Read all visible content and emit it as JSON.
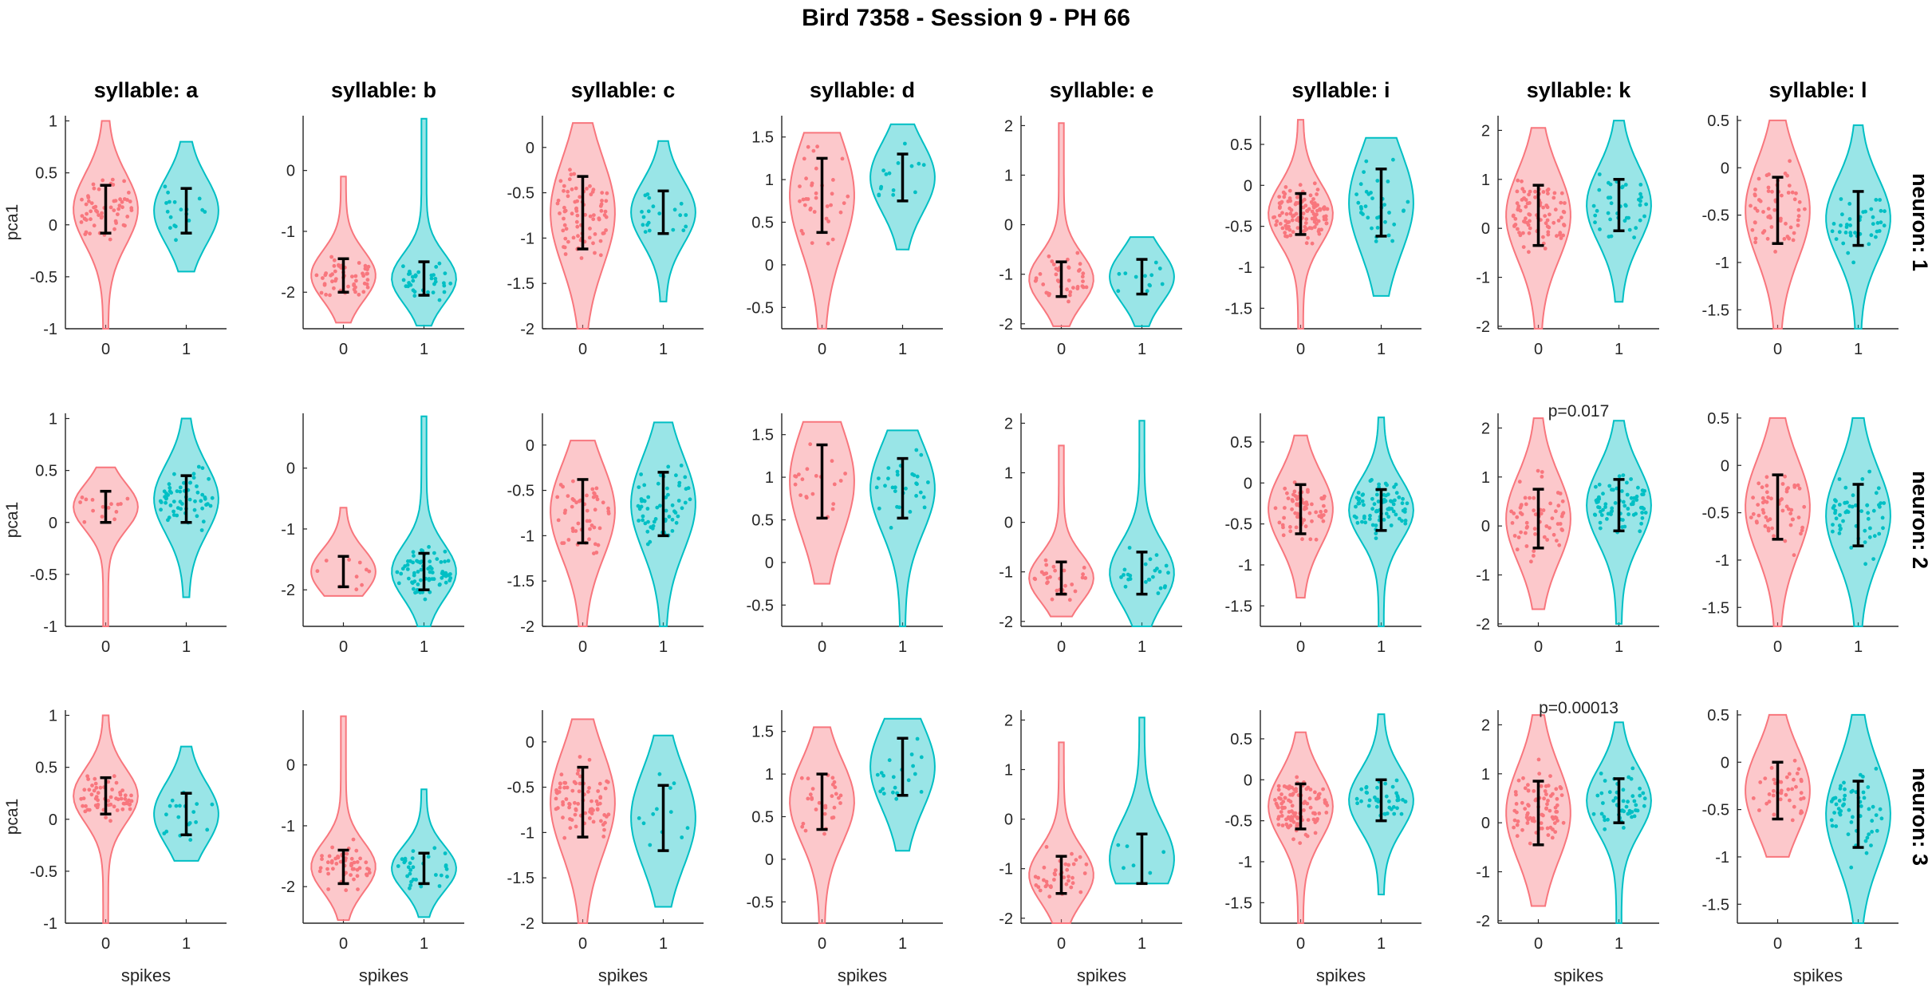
{
  "figure_title": "Bird 7358 - Session 9 - PH 66",
  "colors": {
    "spikes0": "#f8767d",
    "spikes1": "#00bfc4",
    "whisker": "#000000",
    "axis": "#262626"
  },
  "chart_data": {
    "type": "violin",
    "title": "Bird 7358 - Session 9 - PH 66",
    "xlabel": "spikes",
    "ylabel": "pca1",
    "categories": [
      "0",
      "1"
    ],
    "columns": [
      "syllable: a",
      "syllable: b",
      "syllable: c",
      "syllable: d",
      "syllable: e",
      "syllable: i",
      "syllable: k",
      "syllable: l"
    ],
    "rows": [
      "neuron: 1",
      "neuron: 2",
      "neuron: 3"
    ],
    "ylims": [
      [
        -1,
        1.05
      ],
      [
        -2.6,
        0.9
      ],
      [
        -2,
        0.35
      ],
      [
        -0.75,
        1.75
      ],
      [
        -2.1,
        2.2
      ],
      [
        -1.75,
        0.85
      ],
      [
        -2.05,
        2.3
      ],
      [
        -1.7,
        0.55
      ]
    ],
    "yticks": [
      [
        -1,
        -0.5,
        0,
        0.5,
        1
      ],
      [
        -2,
        -1,
        0
      ],
      [
        -2,
        -1.5,
        -1,
        -0.5,
        0
      ],
      [
        -0.5,
        0,
        0.5,
        1,
        1.5
      ],
      [
        -2,
        -1,
        0,
        1,
        2
      ],
      [
        -1.5,
        -1,
        -0.5,
        0,
        0.5
      ],
      [
        -2,
        -1,
        0,
        1,
        2
      ],
      [
        -1.5,
        -1,
        -0.5,
        0,
        0.5
      ]
    ],
    "ytick_labels": [
      [
        "-1",
        "-0.5",
        "0",
        "0.5",
        "1"
      ],
      [
        "-2",
        "-1",
        "0"
      ],
      [
        "-2",
        "-1.5",
        "-1",
        "-0.5",
        "0"
      ],
      [
        "-0.5",
        "0",
        "0.5",
        "1",
        "1.5"
      ],
      [
        "-2",
        "-1",
        "0",
        "1",
        "2"
      ],
      [
        "-1.5",
        "-1",
        "-0.5",
        "0",
        "0.5"
      ],
      [
        "-2",
        "-1",
        "0",
        "1",
        "2"
      ],
      [
        "-1.5",
        "-1",
        "-0.5",
        "0",
        "0.5"
      ]
    ],
    "panels": [
      [
        {
          "v0": {
            "min": -1,
            "max": 1,
            "q1": -0.08,
            "q3": 0.38,
            "n": 60
          },
          "v1": {
            "min": -0.45,
            "max": 0.8,
            "q1": -0.08,
            "q3": 0.35,
            "n": 18
          },
          "p": ""
        },
        {
          "v0": {
            "min": -2.5,
            "max": -0.1,
            "q1": -2.0,
            "q3": -1.45,
            "n": 55
          },
          "v1": {
            "min": -2.55,
            "max": 0.85,
            "q1": -2.05,
            "q3": -1.5,
            "n": 35
          },
          "p": ""
        },
        {
          "v0": {
            "min": -2,
            "max": 0.27,
            "q1": -1.12,
            "q3": -0.32,
            "n": 80
          },
          "v1": {
            "min": -1.7,
            "max": 0.07,
            "q1": -0.95,
            "q3": -0.48,
            "n": 20
          },
          "p": ""
        },
        {
          "v0": {
            "min": -0.75,
            "max": 1.55,
            "q1": 0.38,
            "q3": 1.25,
            "n": 35
          },
          "v1": {
            "min": 0.18,
            "max": 1.65,
            "q1": 0.75,
            "q3": 1.3,
            "n": 15
          },
          "p": ""
        },
        {
          "v0": {
            "min": -2.05,
            "max": 2.05,
            "q1": -1.45,
            "q3": -0.75,
            "n": 40
          },
          "v1": {
            "min": -2.05,
            "max": -0.25,
            "q1": -1.4,
            "q3": -0.7,
            "n": 12
          },
          "p": ""
        },
        {
          "v0": {
            "min": -1.75,
            "max": 0.8,
            "q1": -0.6,
            "q3": -0.1,
            "n": 120
          },
          "v1": {
            "min": -1.35,
            "max": 0.58,
            "q1": -0.62,
            "q3": 0.2,
            "n": 35
          },
          "p": ""
        },
        {
          "v0": {
            "min": -2.05,
            "max": 2.05,
            "q1": -0.35,
            "q3": 0.88,
            "n": 90
          },
          "v1": {
            "min": -1.5,
            "max": 2.2,
            "q1": -0.05,
            "q3": 1.0,
            "n": 40
          },
          "p": ""
        },
        {
          "v0": {
            "min": -1.7,
            "max": 0.5,
            "q1": -0.8,
            "q3": -0.1,
            "n": 60
          },
          "v1": {
            "min": -1.7,
            "max": 0.45,
            "q1": -0.82,
            "q3": -0.25,
            "n": 40
          },
          "p": ""
        }
      ],
      [
        {
          "v0": {
            "min": -1,
            "max": 0.53,
            "q1": 0.0,
            "q3": 0.3,
            "n": 15
          },
          "v1": {
            "min": -0.72,
            "max": 1.0,
            "q1": 0.0,
            "q3": 0.45,
            "n": 60
          },
          "p": ""
        },
        {
          "v0": {
            "min": -2.1,
            "max": -0.65,
            "q1": -1.95,
            "q3": -1.45,
            "n": 10
          },
          "v1": {
            "min": -2.6,
            "max": 0.85,
            "q1": -2.0,
            "q3": -1.4,
            "n": 70
          },
          "p": ""
        },
        {
          "v0": {
            "min": -2,
            "max": 0.05,
            "q1": -1.08,
            "q3": -0.38,
            "n": 50
          },
          "v1": {
            "min": -2,
            "max": 0.25,
            "q1": -1.0,
            "q3": -0.3,
            "n": 60
          },
          "p": ""
        },
        {
          "v0": {
            "min": -0.25,
            "max": 1.65,
            "q1": 0.52,
            "q3": 1.38,
            "n": 20
          },
          "v1": {
            "min": -0.75,
            "max": 1.55,
            "q1": 0.52,
            "q3": 1.22,
            "n": 30
          },
          "p": ""
        },
        {
          "v0": {
            "min": -1.9,
            "max": 1.55,
            "q1": -1.45,
            "q3": -0.8,
            "n": 30
          },
          "v1": {
            "min": -2.1,
            "max": 2.05,
            "q1": -1.45,
            "q3": -0.6,
            "n": 25
          },
          "p": ""
        },
        {
          "v0": {
            "min": -1.4,
            "max": 0.58,
            "q1": -0.62,
            "q3": -0.02,
            "n": 70
          },
          "v1": {
            "min": -1.75,
            "max": 0.8,
            "q1": -0.58,
            "q3": -0.08,
            "n": 80
          },
          "p": ""
        },
        {
          "v0": {
            "min": -1.7,
            "max": 2.2,
            "q1": -0.45,
            "q3": 0.75,
            "n": 60
          },
          "v1": {
            "min": -2.0,
            "max": 2.15,
            "q1": -0.1,
            "q3": 0.95,
            "n": 70
          },
          "p": "p=0.017"
        },
        {
          "v0": {
            "min": -1.7,
            "max": 0.5,
            "q1": -0.78,
            "q3": -0.1,
            "n": 55
          },
          "v1": {
            "min": -1.7,
            "max": 0.5,
            "q1": -0.85,
            "q3": -0.2,
            "n": 55
          },
          "p": ""
        }
      ],
      [
        {
          "v0": {
            "min": -1,
            "max": 1,
            "q1": 0.05,
            "q3": 0.4,
            "n": 60
          },
          "v1": {
            "min": -0.4,
            "max": 0.7,
            "q1": -0.15,
            "q3": 0.25,
            "n": 20
          },
          "p": ""
        },
        {
          "v0": {
            "min": -2.55,
            "max": 0.8,
            "q1": -1.95,
            "q3": -1.4,
            "n": 55
          },
          "v1": {
            "min": -2.5,
            "max": -0.4,
            "q1": -1.95,
            "q3": -1.45,
            "n": 30
          },
          "p": ""
        },
        {
          "v0": {
            "min": -2,
            "max": 0.25,
            "q1": -1.05,
            "q3": -0.28,
            "n": 80
          },
          "v1": {
            "min": -1.82,
            "max": 0.07,
            "q1": -1.2,
            "q3": -0.48,
            "n": 12
          },
          "p": ""
        },
        {
          "v0": {
            "min": -0.75,
            "max": 1.55,
            "q1": 0.35,
            "q3": 1.0,
            "n": 30
          },
          "v1": {
            "min": 0.1,
            "max": 1.65,
            "q1": 0.75,
            "q3": 1.42,
            "n": 20
          },
          "p": ""
        },
        {
          "v0": {
            "min": -2.1,
            "max": 1.55,
            "q1": -1.5,
            "q3": -0.75,
            "n": 40
          },
          "v1": {
            "min": -1.3,
            "max": 2.05,
            "q1": -1.3,
            "q3": -0.3,
            "n": 6
          },
          "p": ""
        },
        {
          "v0": {
            "min": -1.75,
            "max": 0.58,
            "q1": -0.6,
            "q3": -0.05,
            "n": 110
          },
          "v1": {
            "min": -1.4,
            "max": 0.8,
            "q1": -0.5,
            "q3": 0.0,
            "n": 40
          },
          "p": ""
        },
        {
          "v0": {
            "min": -1.7,
            "max": 2.2,
            "q1": -0.45,
            "q3": 0.85,
            "n": 80
          },
          "v1": {
            "min": -2.05,
            "max": 2.05,
            "q1": 0.0,
            "q3": 0.9,
            "n": 50
          },
          "p": "p=0.00013"
        },
        {
          "v0": {
            "min": -1.0,
            "max": 0.5,
            "q1": -0.6,
            "q3": 0.0,
            "n": 40
          },
          "v1": {
            "min": -1.7,
            "max": 0.5,
            "q1": -0.9,
            "q3": -0.2,
            "n": 55
          },
          "p": ""
        }
      ]
    ]
  }
}
